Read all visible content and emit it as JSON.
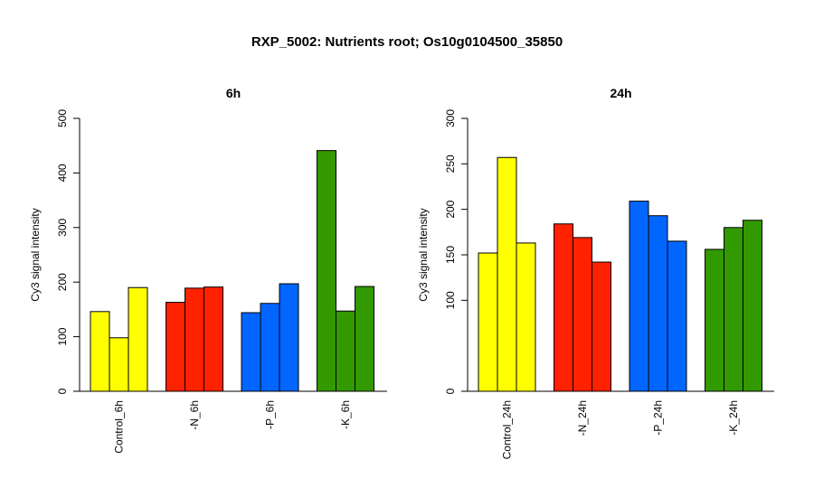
{
  "title": "RXP_5002: Nutrients root; Os10g0104500_35850",
  "colors": {
    "control": "#ffff00",
    "N": "#ff2200",
    "P": "#0066ff",
    "K": "#339900"
  },
  "chart_data": [
    {
      "type": "bar",
      "title": "6h",
      "ylabel": "Cy3 signal intensity",
      "xlabel": "",
      "ylim": [
        0,
        500
      ],
      "yticks": [
        0,
        100,
        200,
        300,
        400,
        500
      ],
      "categories": [
        "Control_6h",
        "-N_6h",
        "-P_6h",
        "-K_6h"
      ],
      "groups": [
        {
          "category": "Control_6h",
          "color_key": "control",
          "values": [
            146,
            98,
            190
          ]
        },
        {
          "category": "-N_6h",
          "color_key": "N",
          "values": [
            163,
            189,
            191
          ]
        },
        {
          "category": "-P_6h",
          "color_key": "P",
          "values": [
            144,
            161,
            197
          ]
        },
        {
          "category": "-K_6h",
          "color_key": "K",
          "values": [
            441,
            147,
            192
          ]
        }
      ]
    },
    {
      "type": "bar",
      "title": "24h",
      "ylabel": "Cy3 signal intensity",
      "xlabel": "",
      "ylim": [
        0,
        300
      ],
      "yticks": [
        0,
        100,
        150,
        200,
        250,
        300
      ],
      "categories": [
        "Control_24h",
        "-N_24h",
        "-P_24h",
        "-K_24h"
      ],
      "groups": [
        {
          "category": "Control_24h",
          "color_key": "control",
          "values": [
            152,
            257,
            163
          ]
        },
        {
          "category": "-N_24h",
          "color_key": "N",
          "values": [
            184,
            169,
            142
          ]
        },
        {
          "category": "-P_24h",
          "color_key": "P",
          "values": [
            209,
            193,
            165
          ]
        },
        {
          "category": "-K_24h",
          "color_key": "K",
          "values": [
            156,
            180,
            188
          ]
        }
      ]
    }
  ]
}
